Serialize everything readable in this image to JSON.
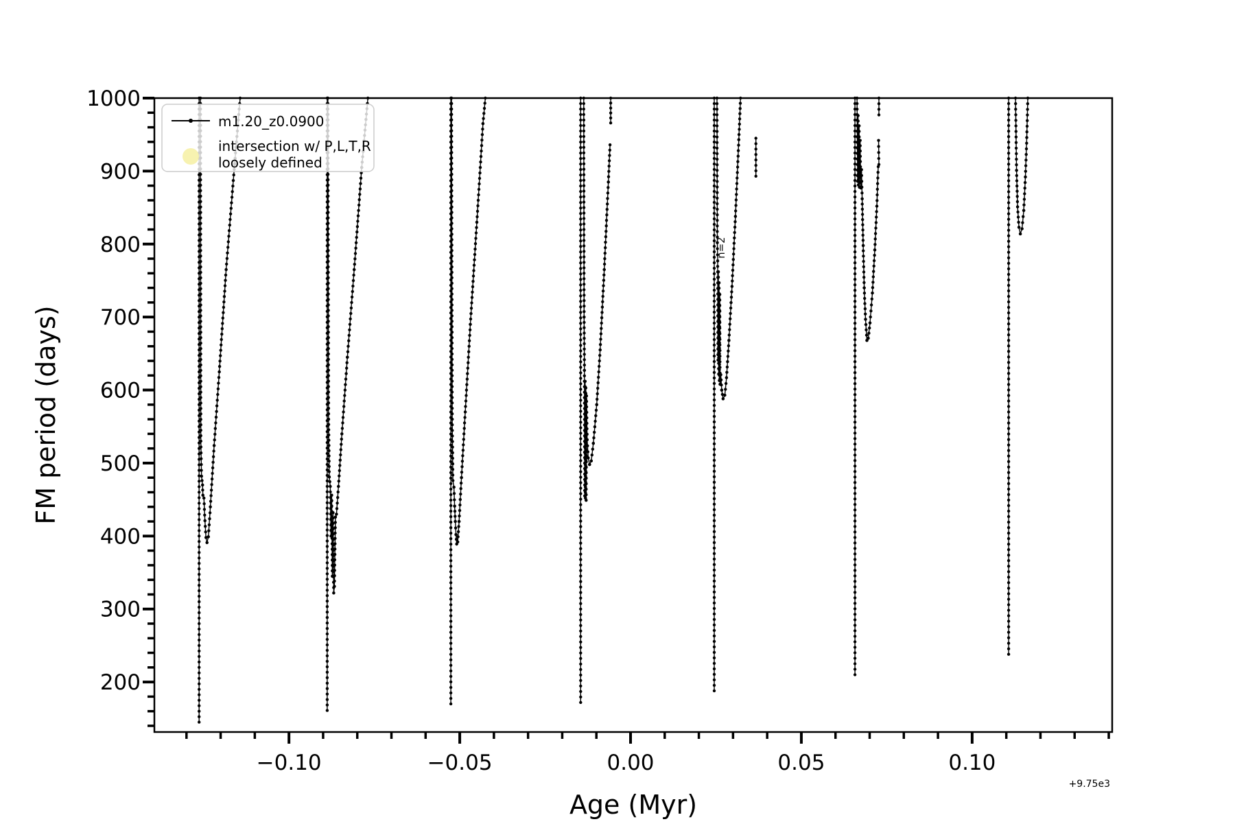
{
  "figure": {
    "background": "#ffffff",
    "frame_color": "#000000",
    "series_color": "#000000"
  },
  "chart_data": {
    "type": "line",
    "title": "",
    "xlabel": "Age (Myr)",
    "ylabel": "FM period (days)",
    "x_offset_text": "+9.75e3",
    "xlim": [
      -0.1394,
      0.141
    ],
    "ylim": [
      131.5,
      1000
    ],
    "grid": false,
    "x_major_ticks": [
      -0.1,
      -0.05,
      0.0,
      0.05,
      0.1
    ],
    "x_major_labels": [
      "−0.10",
      "−0.05",
      "0.00",
      "0.05",
      "0.10"
    ],
    "x_minor_step": 0.01,
    "y_major_ticks": [
      200,
      300,
      400,
      500,
      600,
      700,
      800,
      900,
      1000
    ],
    "y_major_labels": [
      "200",
      "300",
      "400",
      "500",
      "600",
      "700",
      "800",
      "900",
      "1000"
    ],
    "y_minor_step": 20,
    "legend": {
      "position": "upper left",
      "entries": [
        {
          "label": "m1.20_z0.0900",
          "type": "line+marker",
          "color": "#000000"
        },
        {
          "label_line1": "intersection w/ P,L,T,R",
          "label_line2": "loosely defined",
          "type": "circle",
          "color": "#f6f1a7"
        }
      ]
    },
    "annotations": [
      {
        "text": "n=2",
        "x": 0.0275,
        "y": 795,
        "rotation": 90
      }
    ],
    "series": [
      {
        "name": "m1.20_z0.0900",
        "color": "#000000",
        "marker": "point",
        "segments": [
          [
            [
              -0.1263,
              1000
            ],
            [
              -0.1263,
              145
            ]
          ],
          [
            [
              -0.1259,
              1000
            ],
            [
              -0.1258,
              530
            ],
            [
              -0.1256,
              482
            ],
            [
              -0.1253,
              470
            ],
            [
              -0.1252,
              456
            ],
            [
              -0.1249,
              452
            ],
            [
              -0.1246,
              421
            ],
            [
              -0.1243,
              398
            ],
            [
              -0.124,
              391
            ],
            [
              -0.1236,
              399
            ],
            [
              -0.123,
              440
            ],
            [
              -0.1219,
              524
            ],
            [
              -0.1204,
              625
            ],
            [
              -0.1184,
              765
            ],
            [
              -0.1159,
              910
            ],
            [
              -0.1143,
              1000
            ]
          ],
          [
            [
              -0.0888,
              1000
            ],
            [
              -0.0888,
              161
            ]
          ],
          [
            [
              -0.0886,
              1000
            ],
            [
              -0.0884,
              560
            ],
            [
              -0.0882,
              481
            ],
            [
              -0.0879,
              468
            ],
            [
              -0.0877,
              400
            ],
            [
              -0.0875,
              456
            ],
            [
              -0.0873,
              345
            ],
            [
              -0.0871,
              432
            ],
            [
              -0.0869,
              322
            ],
            [
              -0.0867,
              331
            ],
            [
              -0.0864,
              426
            ],
            [
              -0.0861,
              430
            ],
            [
              -0.0855,
              468
            ],
            [
              -0.0845,
              540
            ],
            [
              -0.0829,
              645
            ],
            [
              -0.0809,
              765
            ],
            [
              -0.0787,
              905
            ],
            [
              -0.0769,
              1000
            ]
          ],
          [
            [
              -0.0526,
              1000
            ],
            [
              -0.0526,
              170
            ]
          ],
          [
            [
              -0.0524,
              1000
            ],
            [
              -0.0522,
              560
            ],
            [
              -0.052,
              476
            ],
            [
              -0.0517,
              467
            ],
            [
              -0.0515,
              441
            ],
            [
              -0.0513,
              420
            ],
            [
              -0.0511,
              402
            ],
            [
              -0.0509,
              389
            ],
            [
              -0.0506,
              392
            ],
            [
              -0.0502,
              420
            ],
            [
              -0.0495,
              480
            ],
            [
              -0.0484,
              570
            ],
            [
              -0.0469,
              690
            ],
            [
              -0.045,
              830
            ],
            [
              -0.0432,
              965
            ],
            [
              -0.0425,
              1000
            ]
          ],
          [
            [
              -0.0146,
              1000
            ],
            [
              -0.0146,
              172
            ]
          ],
          [
            [
              -0.0137,
              1000
            ],
            [
              -0.0136,
              700
            ],
            [
              -0.0135,
              627
            ],
            [
              -0.0134,
              455
            ],
            [
              -0.0133,
              612
            ],
            [
              -0.0132,
              452
            ],
            [
              -0.0131,
              603
            ],
            [
              -0.013,
              449
            ],
            [
              -0.0129,
              592
            ],
            [
              -0.0127,
              532
            ],
            [
              -0.0124,
              507
            ],
            [
              -0.012,
              498
            ],
            [
              -0.0115,
              503
            ],
            [
              -0.0109,
              527
            ],
            [
              -0.0099,
              580
            ],
            [
              -0.0089,
              655
            ],
            [
              -0.0077,
              765
            ],
            [
              -0.0065,
              885
            ],
            [
              -0.006,
              936
            ]
          ],
          [
            [
              -0.0058,
              1000
            ],
            [
              -0.0058,
              966
            ]
          ],
          [
            [
              0.0245,
              1000
            ],
            [
              0.0245,
              188
            ]
          ],
          [
            [
              0.0253,
              1000
            ],
            [
              0.0254,
              802
            ],
            [
              0.0255,
              777
            ],
            [
              0.0256,
              641
            ],
            [
              0.0257,
              762
            ],
            [
              0.0258,
              622
            ],
            [
              0.0259,
              747
            ],
            [
              0.026,
              613
            ],
            [
              0.0261,
              731
            ],
            [
              0.0262,
              608
            ],
            [
              0.0264,
              621
            ],
            [
              0.0267,
              600
            ],
            [
              0.0271,
              588
            ],
            [
              0.0276,
              593
            ],
            [
              0.0281,
              617
            ],
            [
              0.0288,
              668
            ],
            [
              0.0297,
              742
            ],
            [
              0.0307,
              838
            ],
            [
              0.0317,
              943
            ],
            [
              0.0322,
              1000
            ]
          ],
          [
            [
              0.0367,
              945
            ],
            [
              0.0367,
              893
            ]
          ],
          [
            [
              0.0657,
              1000
            ],
            [
              0.0657,
              210
            ]
          ],
          [
            [
              0.0663,
              1000
            ],
            [
              0.0664,
              932
            ],
            [
              0.0665,
              886
            ],
            [
              0.0666,
              976
            ],
            [
              0.0667,
              881
            ],
            [
              0.0669,
              962
            ],
            [
              0.067,
              878
            ],
            [
              0.0672,
              942
            ],
            [
              0.0674,
              877
            ],
            [
              0.0676,
              902
            ],
            [
              0.0678,
              862
            ],
            [
              0.0681,
              798
            ],
            [
              0.0684,
              740
            ],
            [
              0.0688,
              697
            ],
            [
              0.0692,
              668
            ],
            [
              0.0696,
              671
            ],
            [
              0.0701,
              692
            ],
            [
              0.0708,
              733
            ],
            [
              0.0715,
              792
            ],
            [
              0.0721,
              852
            ],
            [
              0.0725,
              906
            ]
          ],
          [
            [
              0.0727,
              1000
            ],
            [
              0.0727,
              977
            ]
          ],
          [
            [
              0.0726,
              942
            ],
            [
              0.0727,
              909
            ]
          ],
          [
            [
              0.1107,
              1000
            ],
            [
              0.1107,
              238
            ]
          ],
          [
            [
              0.1127,
              1000
            ],
            [
              0.113,
              901
            ],
            [
              0.1133,
              851
            ],
            [
              0.1137,
              823
            ],
            [
              0.1141,
              814
            ],
            [
              0.1146,
              821
            ],
            [
              0.1151,
              846
            ],
            [
              0.1156,
              892
            ],
            [
              0.116,
              946
            ],
            [
              0.1163,
              1000
            ]
          ]
        ]
      }
    ]
  }
}
